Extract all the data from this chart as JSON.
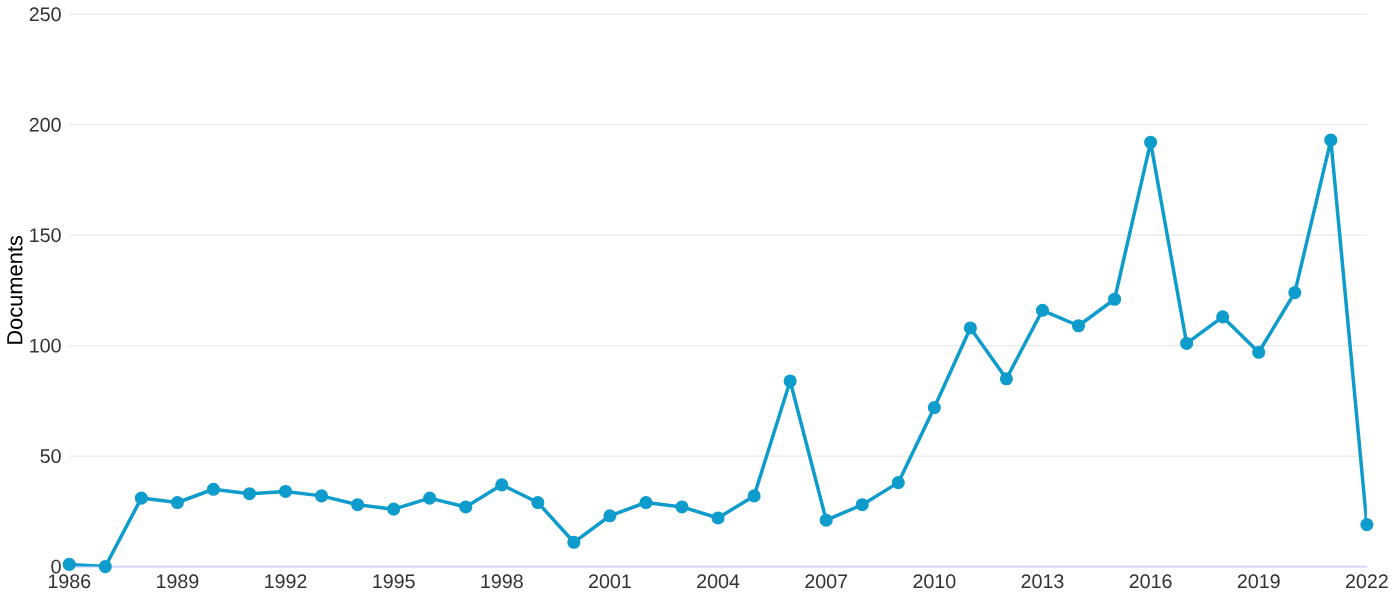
{
  "chart_data": {
    "type": "line",
    "ylabel": "Documents",
    "x": [
      1986,
      1987,
      1988,
      1989,
      1990,
      1991,
      1992,
      1993,
      1994,
      1995,
      1996,
      1997,
      1998,
      1999,
      2000,
      2001,
      2002,
      2003,
      2004,
      2005,
      2006,
      2007,
      2008,
      2009,
      2010,
      2011,
      2012,
      2013,
      2014,
      2015,
      2016,
      2017,
      2018,
      2019,
      2020,
      2021,
      2022
    ],
    "values": [
      1,
      0,
      31,
      29,
      35,
      33,
      34,
      32,
      28,
      26,
      31,
      27,
      37,
      29,
      11,
      23,
      29,
      27,
      22,
      32,
      84,
      21,
      28,
      38,
      72,
      108,
      85,
      116,
      109,
      121,
      192,
      101,
      113,
      97,
      124,
      193,
      19
    ],
    "color": "#0e9ccc",
    "xlim": [
      1986,
      2022
    ],
    "xticks": [
      1986,
      1989,
      1992,
      1995,
      1998,
      2001,
      2004,
      2007,
      2010,
      2013,
      2016,
      2019,
      2022
    ],
    "ylim": [
      0,
      250
    ],
    "yticks": [
      0,
      50,
      100,
      150,
      200,
      250
    ],
    "grid": "y",
    "marker": "circle",
    "line_style": "solid"
  }
}
